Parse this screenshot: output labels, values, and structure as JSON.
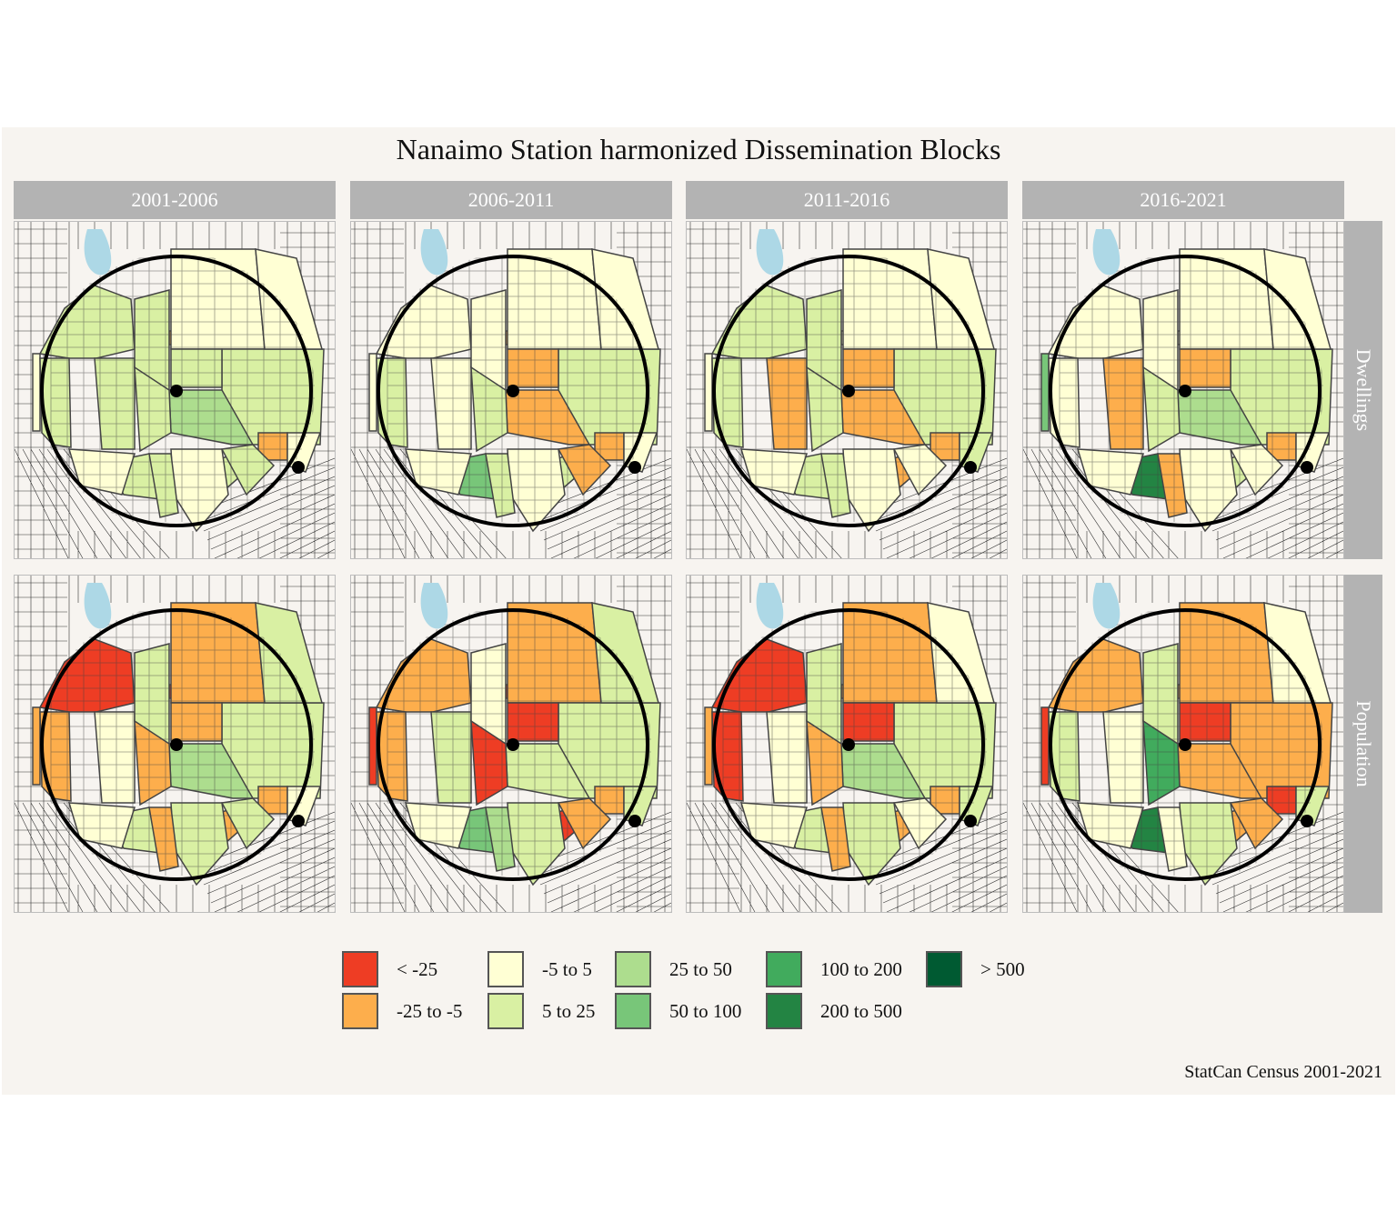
{
  "title": "Nanaimo Station harmonized Dissemination Blocks",
  "caption": "StatCan Census 2001-2021",
  "columns": [
    "2001-2006",
    "2006-2011",
    "2011-2016",
    "2016-2021"
  ],
  "rows": [
    "Dwellings",
    "Population"
  ],
  "legend": [
    {
      "label": "< -25",
      "color": "#ee3d24"
    },
    {
      "label": "-25 to -5",
      "color": "#fdae4c"
    },
    {
      "label": "-5 to 5",
      "color": "#ffffd4"
    },
    {
      "label": "5 to 25",
      "color": "#d9f0a3"
    },
    {
      "label": "25 to 50",
      "color": "#addd8e"
    },
    {
      "label": "50 to 100",
      "color": "#78c679"
    },
    {
      "label": "100 to 200",
      "color": "#41ab5d"
    },
    {
      "label": "200 to 500",
      "color": "#238443"
    },
    {
      "label": "> 500",
      "color": "#005a32"
    }
  ],
  "colors": {
    "background": "#f7f4f0",
    "strip": "#b3b3b3",
    "water": "#add8e6",
    "roads": "#333333",
    "circle": "#000000"
  },
  "chart_data": {
    "type": "map",
    "category_order": [
      "< -25",
      "-25 to -5",
      "-5 to 5",
      "5 to 25",
      "25 to 50",
      "50 to 100",
      "100 to 200",
      "200 to 500",
      "> 500"
    ],
    "panels": [
      {
        "column": "2001-2006",
        "row": "Dwellings",
        "blocks": [
          "5 to 25",
          "-5 to 5",
          "5 to 25",
          "5 to 25",
          "-25 to -5",
          "5 to 25",
          "-5 to 5",
          "5 to 25",
          "5 to 25",
          "-5 to 5",
          "25 to 50",
          "5 to 25",
          "5 to 25",
          "-25 to -5",
          "-5 to 5",
          "5 to 25",
          "-5 to 5",
          "5 to 25",
          "5 to 25",
          "-5 to 5"
        ]
      },
      {
        "column": "2006-2011",
        "row": "Dwellings",
        "blocks": [
          "-5 to 5",
          "-5 to 5",
          "5 to 25",
          "-5 to 5",
          "-25 to -5",
          "-5 to 5",
          "-5 to 5",
          "5 to 25",
          "-25 to -5",
          "-5 to 5",
          "-25 to -5",
          "5 to 25",
          "50 to 100",
          "-25 to -5",
          "-5 to 5",
          "5 to 25",
          "-5 to 5",
          "5 to 25",
          "-25 to -5",
          "-5 to 5"
        ]
      },
      {
        "column": "2011-2016",
        "row": "Dwellings",
        "blocks": [
          "5 to 25",
          "-5 to 5",
          "5 to 25",
          "-25 to -5",
          "-5 to 5",
          "5 to 25",
          "-5 to 5",
          "5 to 25",
          "-25 to -5",
          "-5 to 5",
          "-25 to -5",
          "5 to 25",
          "5 to 25",
          "-25 to -5",
          "-5 to 5",
          "-25 to -5",
          "-5 to 5",
          "5 to 25",
          "-5 to 5",
          "5 to 25"
        ]
      },
      {
        "column": "2016-2021",
        "row": "Dwellings",
        "blocks": [
          "-5 to 5",
          "50 to 100",
          "-5 to 5",
          "-25 to -5",
          "-5 to 5",
          "-5 to 5",
          "-5 to 5",
          "5 to 25",
          "-25 to -5",
          "-5 to 5",
          "25 to 50",
          "5 to 25",
          "200 to 500",
          "-25 to -5",
          "-5 to 5",
          "5 to 25",
          "-5 to 5",
          "-25 to -5",
          "-5 to 5",
          "-5 to 5"
        ]
      },
      {
        "column": "2001-2006",
        "row": "Population",
        "blocks": [
          "< -25",
          "-25 to -5",
          "-25 to -5",
          "-5 to 5",
          "< -25",
          "5 to 25",
          "-25 to -5",
          "5 to 25",
          "-25 to -5",
          "5 to 25",
          "25 to 50",
          "-25 to -5",
          "5 to 25",
          "-25 to -5",
          "-5 to 5",
          "-25 to -5",
          "5 to 25",
          "-25 to -5",
          "5 to 25",
          "-5 to 5"
        ]
      },
      {
        "column": "2006-2011",
        "row": "Population",
        "blocks": [
          "-25 to -5",
          "< -25",
          "-25 to -5",
          "5 to 25",
          "< -25",
          "-5 to 5",
          "-25 to -5",
          "5 to 25",
          "< -25",
          "5 to 25",
          "5 to 25",
          "< -25",
          "50 to 100",
          "-25 to -5",
          "-5 to 5",
          "< -25",
          "5 to 25",
          "25 to 50",
          "-25 to -5",
          "5 to 25"
        ]
      },
      {
        "column": "2011-2016",
        "row": "Population",
        "blocks": [
          "< -25",
          "-25 to -5",
          "< -25",
          "-5 to 5",
          "-25 to -5",
          "5 to 25",
          "-25 to -5",
          "5 to 25",
          "< -25",
          "-5 to 5",
          "25 to 50",
          "-25 to -5",
          "5 to 25",
          "-25 to -5",
          "-5 to 5",
          "-25 to -5",
          "5 to 25",
          "-25 to -5",
          "-5 to 5",
          "5 to 25"
        ]
      },
      {
        "column": "2016-2021",
        "row": "Population",
        "blocks": [
          "-25 to -5",
          "< -25",
          "5 to 25",
          "-5 to 5",
          "-25 to -5",
          "5 to 25",
          "-25 to -5",
          "-25 to -5",
          "< -25",
          "-5 to 5",
          "-25 to -5",
          "100 to 200",
          "200 to 500",
          "< -25",
          "-5 to 5",
          "-25 to -5",
          "5 to 25",
          "-5 to 5",
          "-25 to -5",
          "5 to 25"
        ]
      }
    ]
  }
}
